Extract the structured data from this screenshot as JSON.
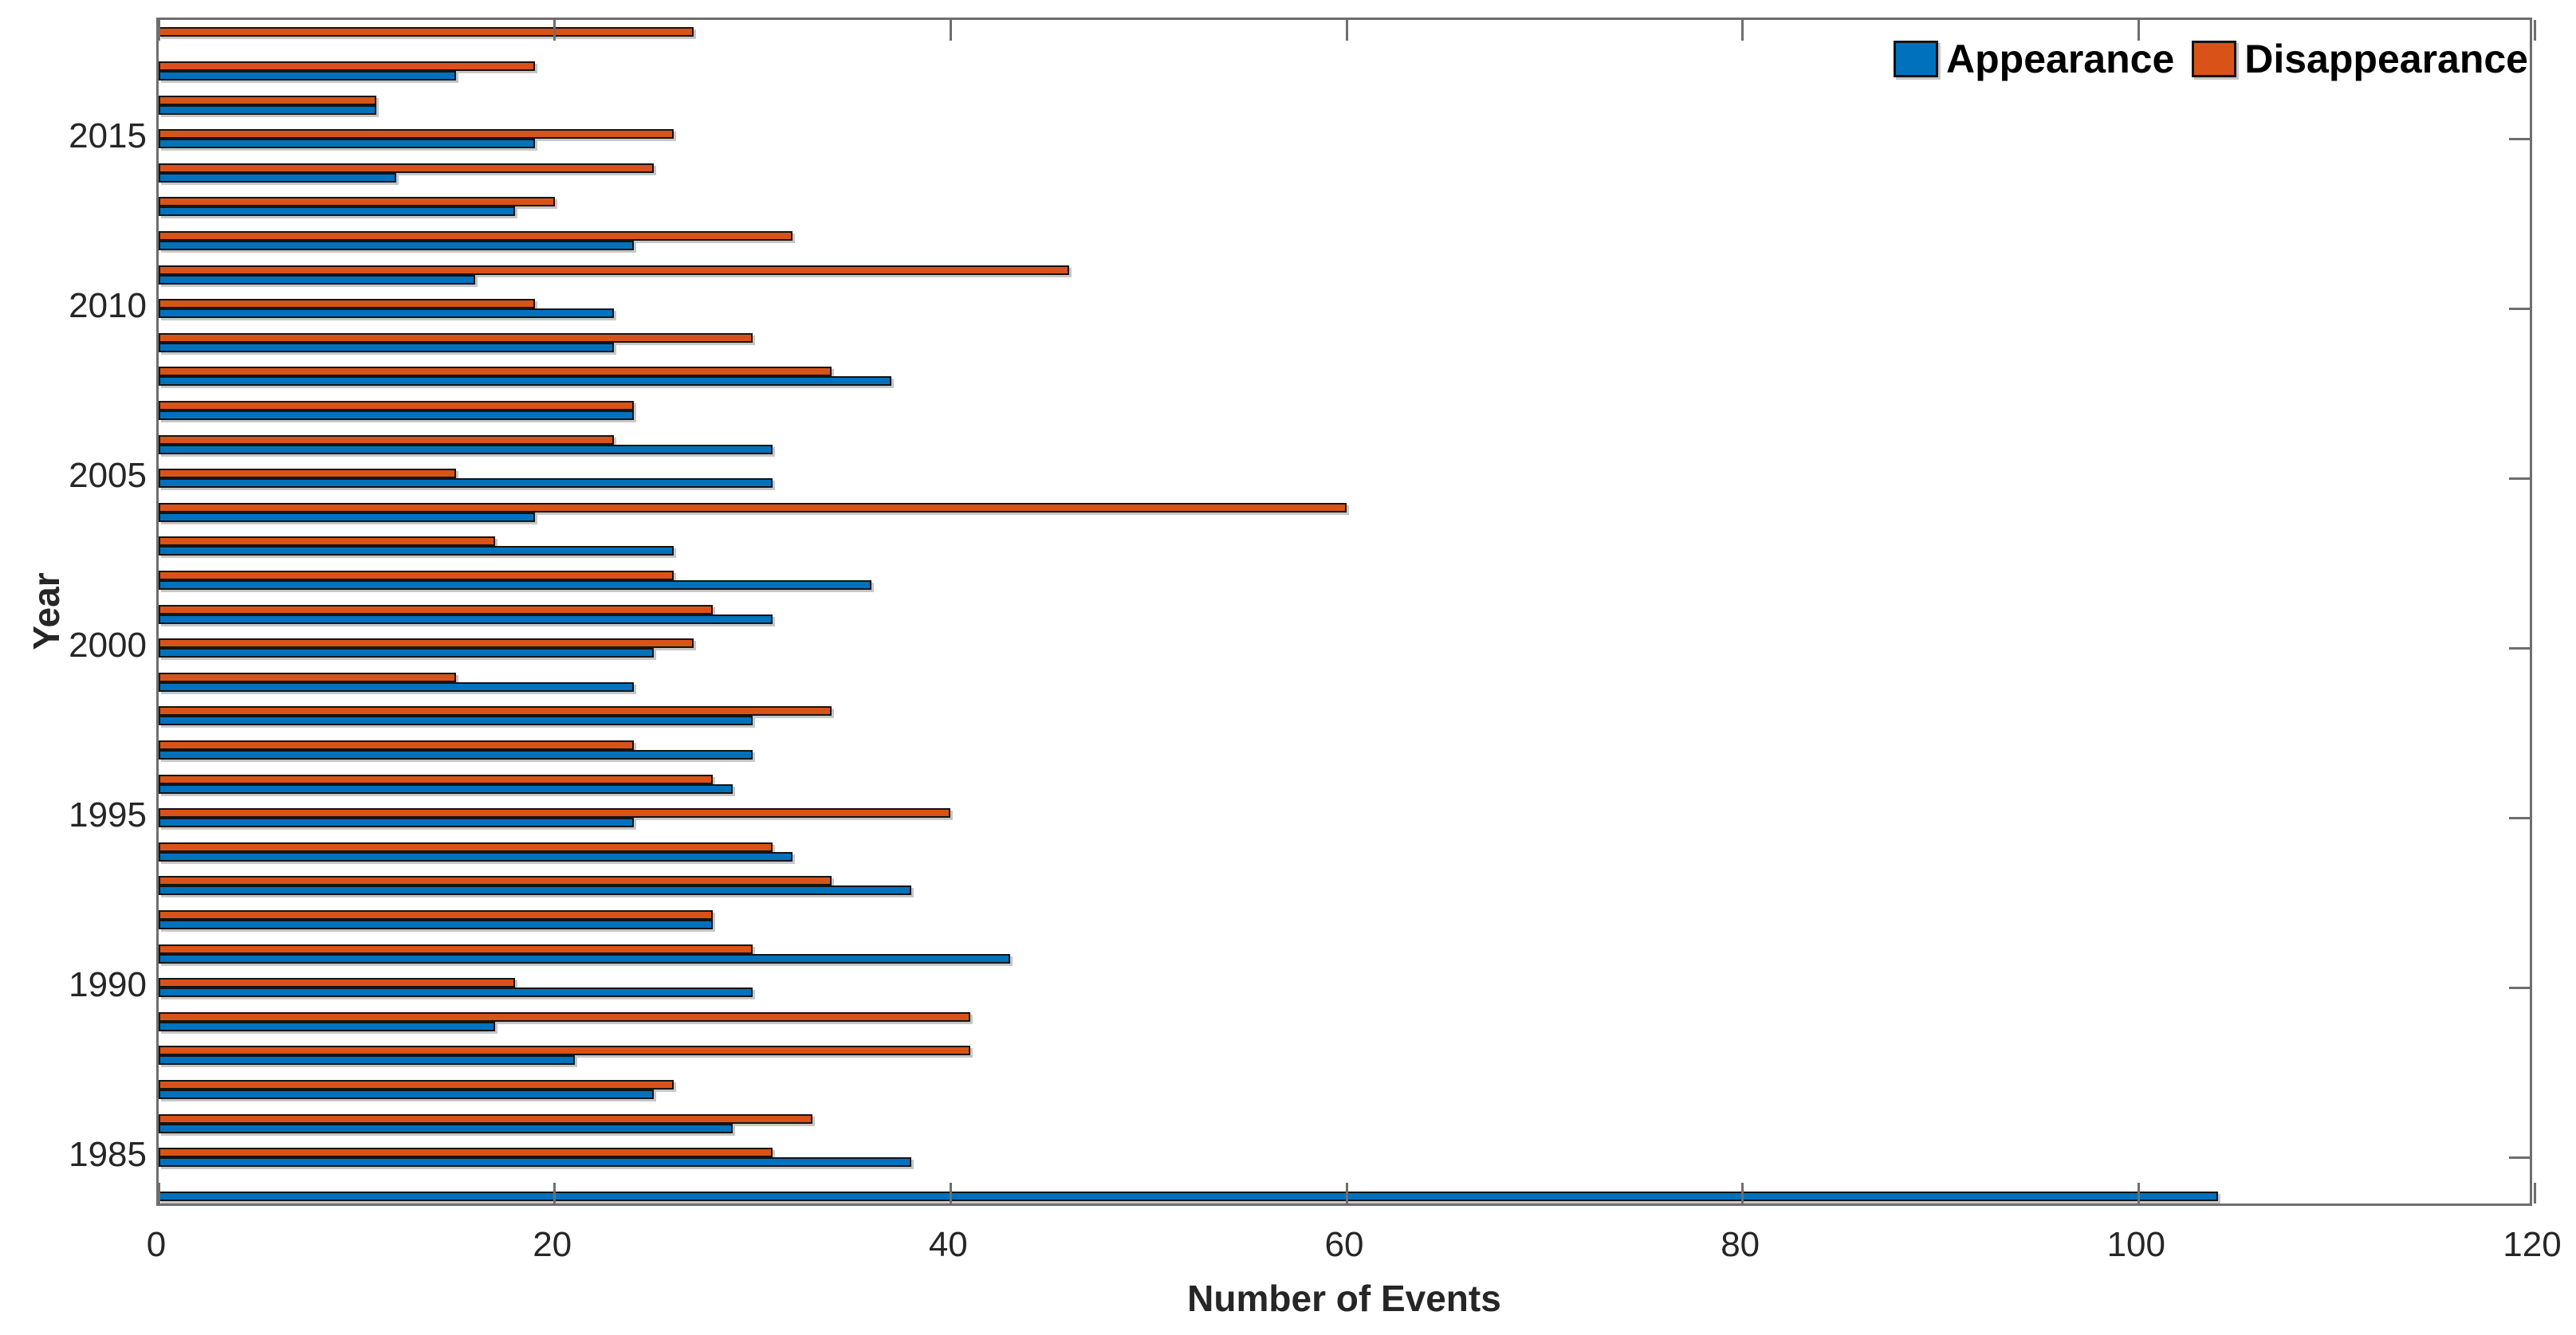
{
  "chart_data": {
    "type": "bar",
    "orientation": "horizontal",
    "title": "",
    "xlabel": "Number of Events",
    "ylabel": "Year",
    "xlim": [
      0,
      120
    ],
    "x_ticks": [
      0,
      20,
      40,
      60,
      80,
      100,
      120
    ],
    "y_tick_years": [
      1985,
      1990,
      1995,
      2000,
      2005,
      2010,
      2015
    ],
    "grid": false,
    "legend_position": "top-right-horizontal",
    "categories": [
      1984,
      1985,
      1986,
      1987,
      1988,
      1989,
      1990,
      1991,
      1992,
      1993,
      1994,
      1995,
      1996,
      1997,
      1998,
      1999,
      2000,
      2001,
      2002,
      2003,
      2004,
      2005,
      2006,
      2007,
      2008,
      2009,
      2010,
      2011,
      2012,
      2013,
      2014,
      2015,
      2016,
      2017,
      2018
    ],
    "series": [
      {
        "name": "Appearance",
        "color": "#0072BD",
        "values": [
          104,
          38,
          29,
          25,
          21,
          17,
          30,
          43,
          28,
          38,
          32,
          24,
          29,
          30,
          30,
          24,
          25,
          31,
          36,
          26,
          19,
          31,
          31,
          24,
          37,
          23,
          23,
          16,
          24,
          18,
          12,
          19,
          11,
          15,
          0
        ]
      },
      {
        "name": "Disappearance",
        "color": "#D95319",
        "values": [
          0,
          31,
          33,
          26,
          41,
          41,
          18,
          30,
          28,
          34,
          31,
          40,
          28,
          24,
          34,
          15,
          27,
          28,
          26,
          17,
          60,
          15,
          23,
          24,
          34,
          30,
          19,
          46,
          32,
          20,
          25,
          26,
          11,
          19,
          27
        ]
      }
    ],
    "bar_edge_color": "#141414",
    "axis_color": "#6e6e6e",
    "text_color": "#262626"
  }
}
